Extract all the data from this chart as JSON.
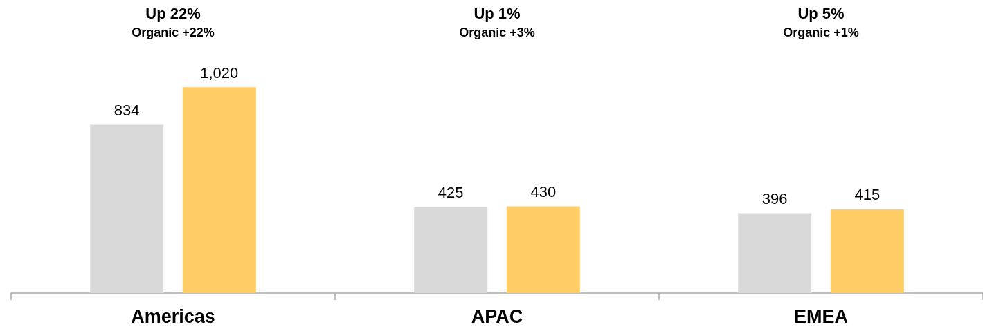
{
  "chart_data": {
    "type": "bar",
    "categories": [
      "Americas",
      "APAC",
      "EMEA"
    ],
    "series": [
      {
        "color": "#d9d9d9",
        "values": [
          834,
          425,
          396
        ],
        "value_labels": [
          "834",
          "425",
          "396"
        ]
      },
      {
        "color": "#ffcc66",
        "values": [
          1020,
          430,
          415
        ],
        "value_labels": [
          "1,020",
          "430",
          "415"
        ]
      }
    ],
    "annotations": [
      "Up 22%",
      "Organic +22%",
      "Up 1%",
      "Organic +3%",
      "Up 5%",
      "Organic +1%"
    ]
  }
}
